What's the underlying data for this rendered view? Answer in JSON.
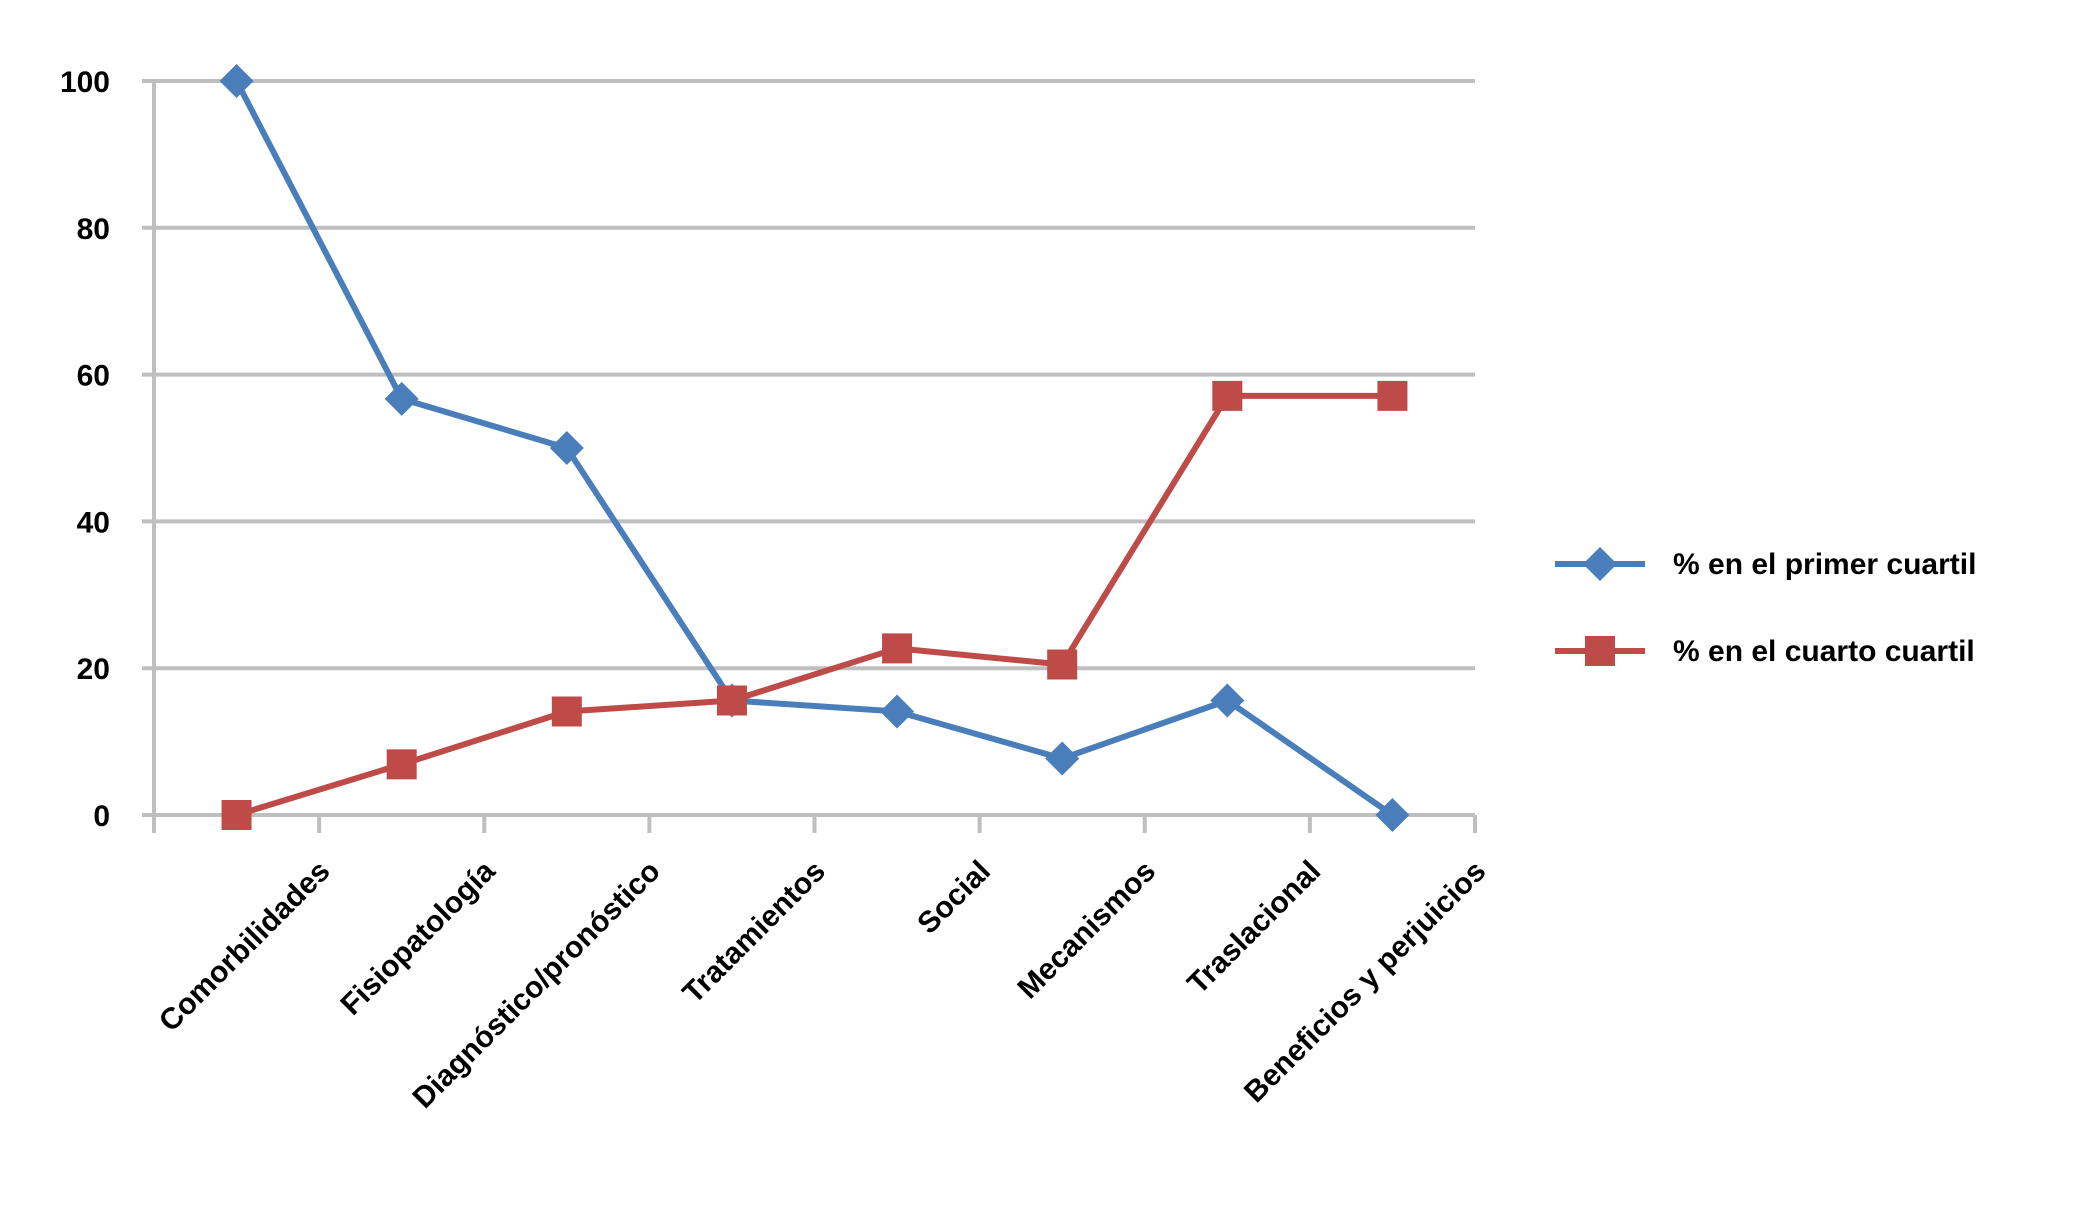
{
  "chart_data": {
    "type": "line",
    "categories": [
      "Comorbilidades",
      "Fisiopatología",
      "Diagnóstico/pronóstico",
      "Tratamientos",
      "Social",
      "Mecanismos",
      "Traslacional",
      "Beneficios y perjuicios"
    ],
    "series": [
      {
        "name": "% en el primer cuartil",
        "color": "#4A7EBB",
        "marker": "diamond",
        "values": [
          100,
          56.7,
          50,
          15.6,
          14.1,
          7.7,
          15.6,
          0
        ]
      },
      {
        "name": "% en el cuarto cuartil",
        "color": "#BE4B48",
        "marker": "square",
        "values": [
          0,
          6.9,
          14.1,
          15.6,
          22.7,
          20.5,
          57.1,
          57.1
        ]
      }
    ],
    "ylim": [
      0,
      100
    ],
    "yticks": [
      "0",
      "20",
      "40",
      "60",
      "80",
      "100"
    ],
    "grid": true,
    "legend": "right",
    "title": "",
    "xlabel": "",
    "ylabel": ""
  }
}
